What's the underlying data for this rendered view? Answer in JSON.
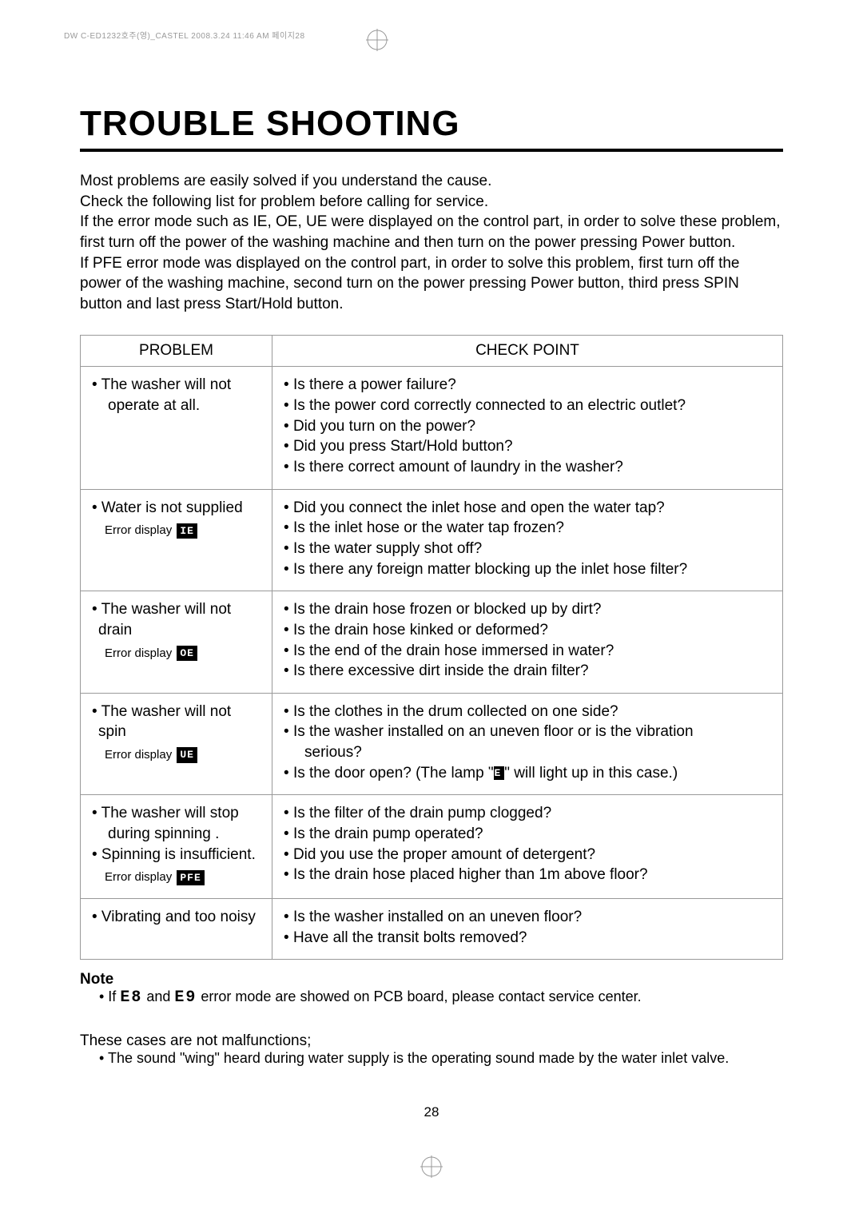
{
  "print_header": "DW C-ED1232호주(영)_CASTEL 2008.3.24 11:46 AM 페이지28",
  "title": "TROUBLE SHOOTING",
  "intro": {
    "line1": "Most problems are easily solved if you understand the cause.",
    "line2": "Check the following list for problem before calling for service.",
    "line3": "If the error mode such as IE, OE, UE were displayed on the control part, in order to solve these problem, first turn off the power of the washing machine and then turn on the power pressing Power button.",
    "line4": "If PFE error mode was displayed on the control part, in order to solve this problem, first turn off the power of the washing machine, second turn on the power pressing Power button, third press SPIN button and last press Start/Hold button."
  },
  "table": {
    "headers": {
      "problem": "PROBLEM",
      "check": "CHECK POINT"
    },
    "rows": [
      {
        "problem_main": "• The washer will not",
        "problem_sub": "operate at all.",
        "error_label": "",
        "error_code": "",
        "checks": [
          "Is there a power failure?",
          "Is the power cord correctly connected to an electric outlet?",
          "Did you turn on the power?",
          "Did you press Start/Hold button?",
          "Is there correct amount of laundry in the washer?"
        ]
      },
      {
        "problem_main": "• Water is not supplied",
        "problem_sub": "",
        "error_label": "Error display",
        "error_code": "IE",
        "checks": [
          "Did you connect the inlet hose and open the water tap?",
          "Is the inlet hose or the water tap frozen?",
          "Is the water supply shot off?",
          "Is there any foreign matter blocking up the inlet hose filter?"
        ]
      },
      {
        "problem_main": "• The washer will not drain",
        "problem_sub": "",
        "error_label": "Error display",
        "error_code": "OE",
        "checks": [
          "Is the drain hose frozen or blocked up by dirt?",
          "Is the drain hose kinked or deformed?",
          "Is the end of the drain hose immersed in water?",
          "Is there excessive dirt inside the drain filter?"
        ]
      },
      {
        "problem_main": "• The washer will not spin",
        "problem_sub": "",
        "error_label": "Error display",
        "error_code": "UE",
        "checks_special": {
          "line1": "Is the clothes in the drum collected on one side?",
          "line2a": "Is the washer installed on an uneven floor or is the vibration",
          "line2b": "serious?",
          "line3_pre": "Is the door open? (The lamp \"",
          "line3_code": "LE",
          "line3_post": "\" will light up in this case.)"
        }
      },
      {
        "problem_multi": [
          "• The washer will stop",
          "  during spinning .",
          "• Spinning is insufficient."
        ],
        "error_label": "Error display",
        "error_code": "PFE",
        "checks": [
          "Is the filter of the drain pump clogged?",
          "Is the drain pump operated?",
          "Did you use the proper amount of detergent?",
          "Is the drain hose  placed higher than 1m above floor?"
        ]
      },
      {
        "problem_main": "• Vibrating and too noisy",
        "problem_sub": "",
        "error_label": "",
        "error_code": "",
        "checks": [
          "Is the washer installed on an uneven floor?",
          "Have all the transit bolts removed?"
        ]
      }
    ]
  },
  "note": {
    "title": "Note",
    "line_pre": "• If ",
    "code1": "E8",
    "line_mid": " and ",
    "code2": "E9",
    "line_post": " error mode are showed on PCB board, please contact service center."
  },
  "closing": {
    "line1": "These cases are not malfunctions;",
    "line2": "• The sound \"wing\" heard during water supply is the operating sound made by the water inlet valve."
  },
  "page_number": "28",
  "colors": {
    "text": "#000000",
    "border": "#999999",
    "header_gray": "#999999",
    "code_bg": "#000000",
    "code_fg": "#ffffff",
    "page_bg": "#ffffff"
  },
  "fonts": {
    "title_size": 44,
    "body_size": 19,
    "error_size": 15,
    "note_size": 18
  }
}
